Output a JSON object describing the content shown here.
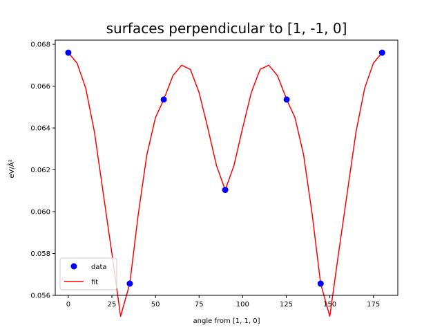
{
  "chart_data": {
    "type": "line",
    "title": "surfaces perpendicular to [1, -1, 0]",
    "xlabel": "angle from [1, 1, 0]",
    "ylabel": "eV/Å²",
    "xlim": [
      -7.5,
      189
    ],
    "ylim": [
      0.056,
      0.0682
    ],
    "xticks": [
      0,
      25,
      50,
      75,
      100,
      125,
      150,
      175
    ],
    "yticks": [
      0.056,
      0.058,
      0.06,
      0.062,
      0.064,
      0.066,
      0.068
    ],
    "ytick_labels": [
      "0.056",
      "0.058",
      "0.060",
      "0.062",
      "0.064",
      "0.066",
      "0.068"
    ],
    "legend_position": "lower-left",
    "series": [
      {
        "name": "data",
        "kind": "scatter",
        "color": "#0000ff",
        "x": [
          0,
          35.26,
          54.74,
          90,
          125.26,
          144.74,
          180
        ],
        "y": [
          0.0676,
          0.05656,
          0.06536,
          0.06104,
          0.06536,
          0.05656,
          0.0676
        ]
      },
      {
        "name": "fit",
        "kind": "line",
        "color": "#ff0000",
        "x": [
          0,
          5,
          10,
          15,
          20,
          25,
          30,
          35.26,
          40,
          45,
          50,
          54.74,
          60,
          65,
          70,
          75,
          80,
          85,
          90,
          95,
          100,
          105,
          110,
          115,
          120,
          125.26,
          130,
          135,
          140,
          144.74,
          150,
          155,
          160,
          165,
          170,
          175,
          180
        ],
        "y": [
          0.0676,
          0.0671,
          0.0659,
          0.0638,
          0.0609,
          0.058,
          0.055,
          0.05656,
          0.0598,
          0.0627,
          0.0645,
          0.06536,
          0.0665,
          0.067,
          0.0668,
          0.0657,
          0.064,
          0.0622,
          0.06104,
          0.0622,
          0.064,
          0.0657,
          0.0668,
          0.067,
          0.0665,
          0.06536,
          0.0645,
          0.0627,
          0.0598,
          0.05656,
          0.055,
          0.058,
          0.0609,
          0.0638,
          0.0659,
          0.0671,
          0.0676
        ]
      }
    ]
  }
}
